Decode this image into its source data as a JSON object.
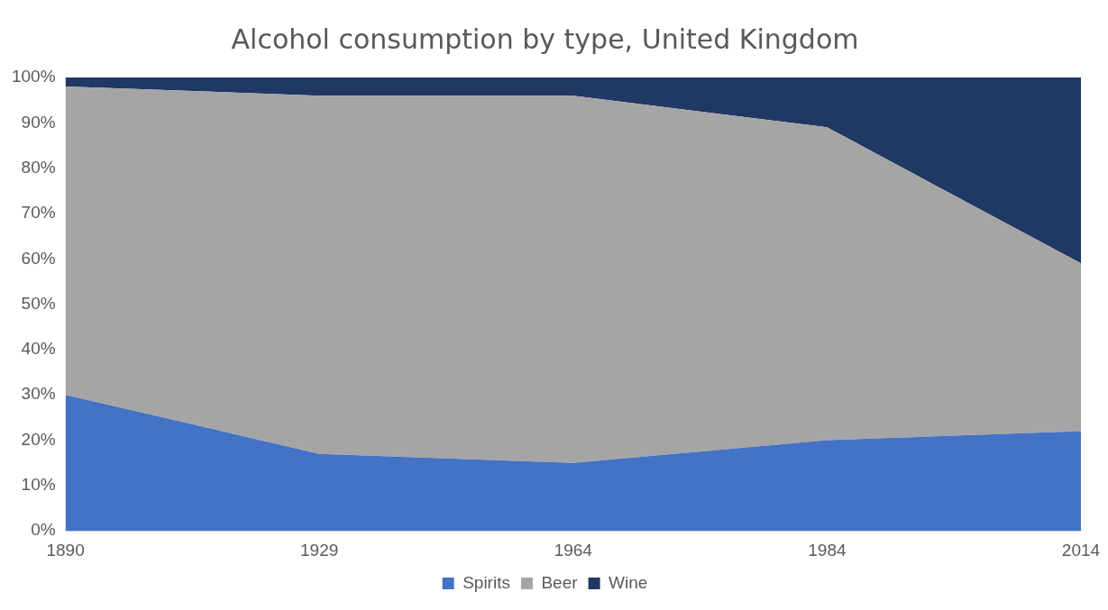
{
  "chart_data": {
    "type": "area",
    "title": "Alcohol consumption by type, United Kingdom",
    "categories": [
      "1890",
      "1929",
      "1964",
      "1984",
      "2014"
    ],
    "stacked": true,
    "ylim": [
      0,
      100
    ],
    "yticks": [
      {
        "value": 0,
        "label": "0%"
      },
      {
        "value": 10,
        "label": "10%"
      },
      {
        "value": 20,
        "label": "20%"
      },
      {
        "value": 30,
        "label": "30%"
      },
      {
        "value": 40,
        "label": "40%"
      },
      {
        "value": 50,
        "label": "50%"
      },
      {
        "value": 60,
        "label": "60%"
      },
      {
        "value": 70,
        "label": "70%"
      },
      {
        "value": 80,
        "label": "80%"
      },
      {
        "value": 90,
        "label": "90%"
      },
      {
        "value": 100,
        "label": "100%"
      }
    ],
    "legend": "bottom",
    "series": [
      {
        "name": "Spirits",
        "color": "#4472c4",
        "values": [
          30,
          17,
          15,
          20,
          22
        ]
      },
      {
        "name": "Beer",
        "color": "#a5a5a5",
        "values": [
          68,
          79,
          81,
          69,
          37
        ]
      },
      {
        "name": "Wine",
        "color": "#203864",
        "values": [
          2,
          4,
          4,
          11,
          41
        ]
      }
    ]
  }
}
